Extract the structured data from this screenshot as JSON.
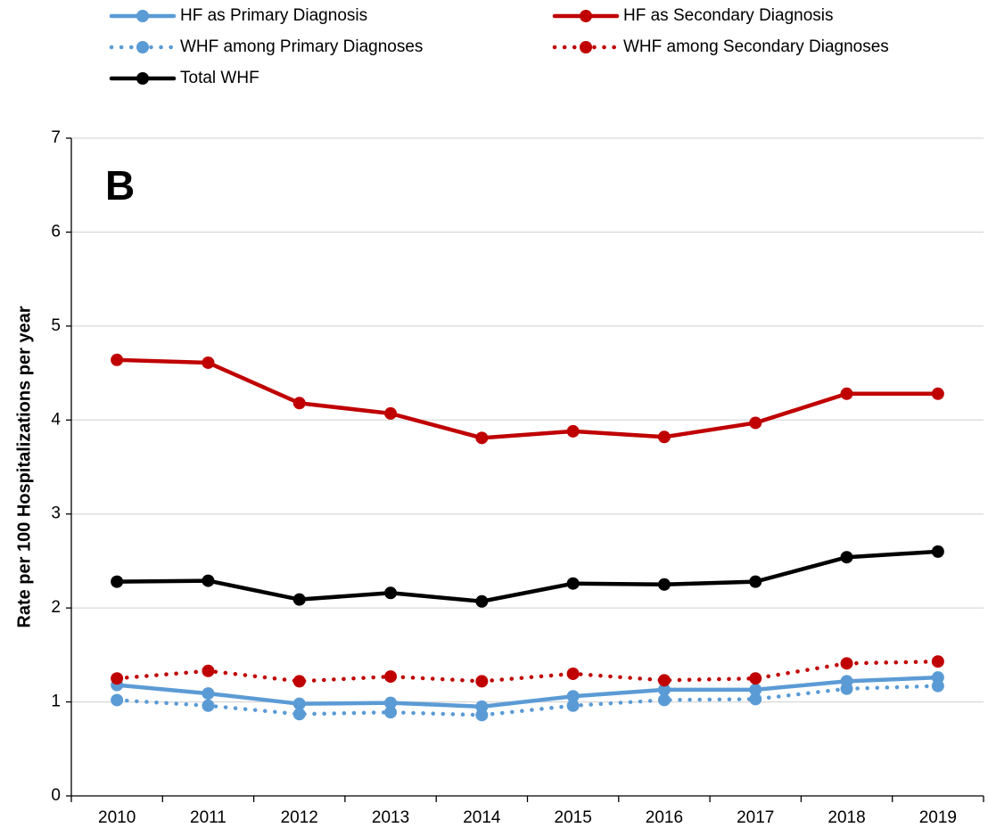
{
  "chart_data": {
    "type": "line",
    "annotation": "B",
    "y_label": "Rate per 100 Hospitalizations per year",
    "categories": [
      "2010",
      "2011",
      "2012",
      "2013",
      "2014",
      "2015",
      "2016",
      "2017",
      "2018",
      "2019"
    ],
    "series": [
      {
        "name": "HF as Primary Diagnosis",
        "color": "#5b9bd5",
        "line_style": "solid",
        "values": [
          1.18,
          1.09,
          0.98,
          0.99,
          0.95,
          1.06,
          1.13,
          1.13,
          1.22,
          1.26
        ]
      },
      {
        "name": "HF as Secondary Diagnosis",
        "color": "#c00000",
        "line_style": "solid",
        "values": [
          4.64,
          4.61,
          4.18,
          4.07,
          3.81,
          3.88,
          3.82,
          3.97,
          4.28,
          4.28
        ]
      },
      {
        "name": "WHF among Primary Diagnoses",
        "color": "#5b9bd5",
        "line_style": "dotted",
        "values": [
          1.02,
          0.96,
          0.87,
          0.89,
          0.86,
          0.96,
          1.02,
          1.03,
          1.14,
          1.17
        ]
      },
      {
        "name": "WHF among Secondary Diagnoses",
        "color": "#c00000",
        "line_style": "dotted",
        "values": [
          1.25,
          1.33,
          1.22,
          1.27,
          1.22,
          1.3,
          1.23,
          1.25,
          1.41,
          1.43
        ]
      },
      {
        "name": "Total WHF",
        "color": "#000000",
        "line_style": "solid",
        "values": [
          2.28,
          2.29,
          2.09,
          2.16,
          2.07,
          2.26,
          2.25,
          2.28,
          2.54,
          2.6
        ]
      }
    ],
    "ylim": [
      0,
      7
    ],
    "yticks": [
      0,
      1,
      2,
      3,
      4,
      5,
      6,
      7
    ],
    "grid": true,
    "legend": "top"
  }
}
